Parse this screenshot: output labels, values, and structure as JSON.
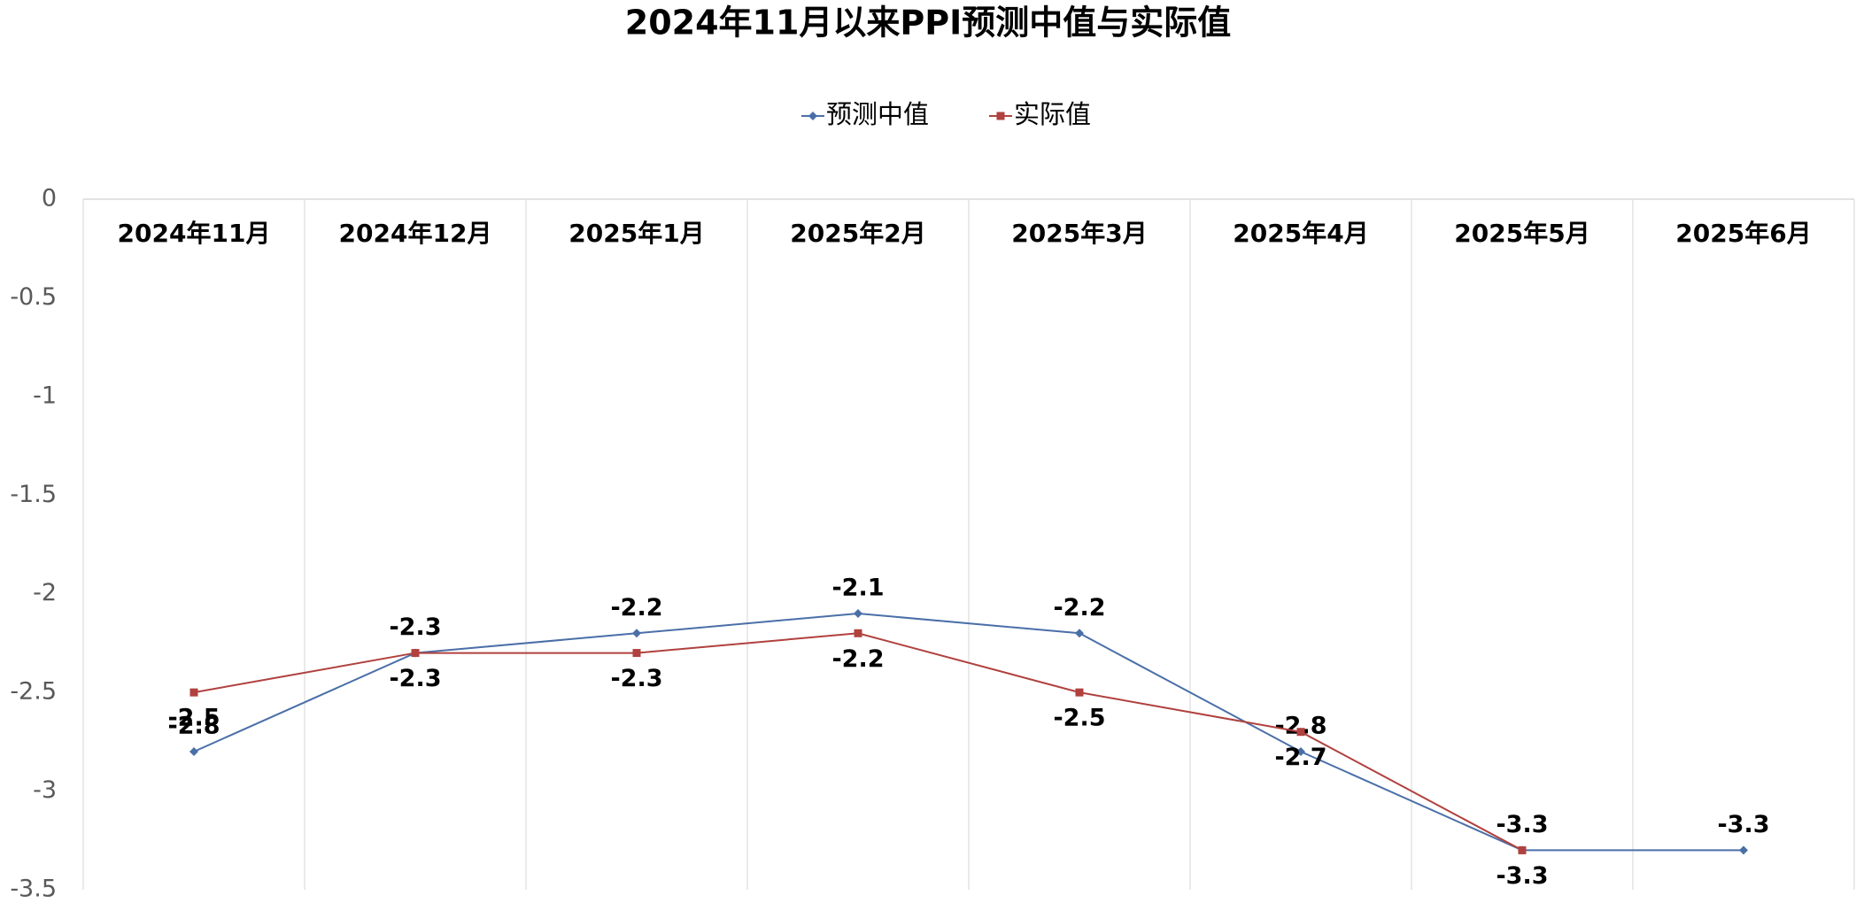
{
  "chart_data": {
    "type": "line",
    "title": "2024年11月以来PPI预测中值与实际值",
    "categories": [
      "2024年11月",
      "2024年12月",
      "2025年1月",
      "2025年2月",
      "2025年3月",
      "2025年4月",
      "2025年5月",
      "2025年6月"
    ],
    "series": [
      {
        "name": "预测中值",
        "color": "#4a6fa8",
        "values": [
          -2.8,
          -2.3,
          -2.2,
          -2.1,
          -2.2,
          -2.8,
          -3.3,
          -3.3
        ]
      },
      {
        "name": "实际值",
        "color": "#b0413e",
        "values": [
          -2.5,
          -2.3,
          -2.3,
          -2.2,
          -2.5,
          -2.7,
          -3.3,
          null
        ]
      }
    ],
    "ylim": [
      -3.5,
      0
    ],
    "yticks": [
      0,
      -0.5,
      -1,
      -1.5,
      -2,
      -2.5,
      -3,
      -3.5
    ],
    "grid": true,
    "legend": "top"
  }
}
